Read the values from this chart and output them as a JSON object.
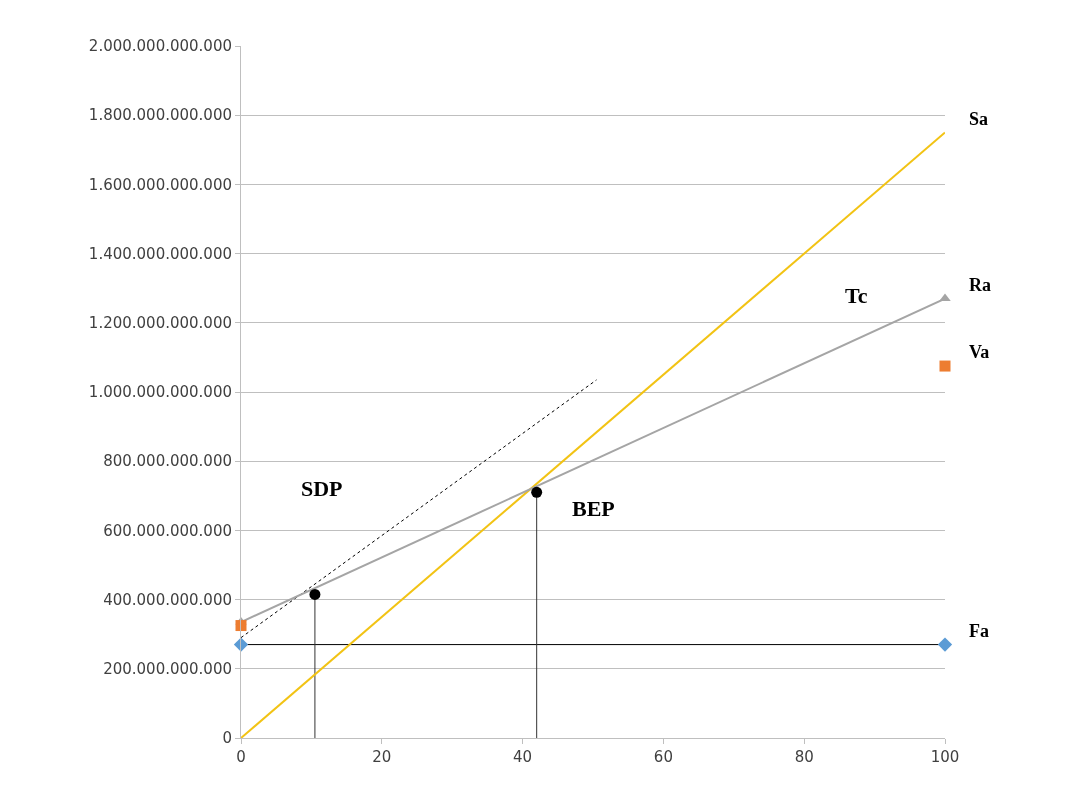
{
  "chart_data": {
    "type": "line",
    "xlim": [
      0,
      100
    ],
    "xticks": [
      0,
      20,
      40,
      60,
      80,
      100
    ],
    "ylim": [
      0,
      2000000000000
    ],
    "yticks": [
      0,
      {
        "value": 200000000000,
        "label": "200.000.000.000"
      },
      {
        "value": 400000000000,
        "label": "400.000.000.000"
      },
      {
        "value": 600000000000,
        "label": "600.000.000.000"
      },
      {
        "value": 800000000000,
        "label": "800.000.000.000"
      },
      {
        "value": 1000000000000,
        "label": "1.000.000.000.000"
      },
      {
        "value": 1200000000000,
        "label": "1.200.000.000.000"
      },
      {
        "value": 1400000000000,
        "label": "1.400.000.000.000"
      },
      {
        "value": 1600000000000,
        "label": "1.600.000.000.000"
      },
      {
        "value": 1800000000000,
        "label": "1.800.000.000.000"
      },
      {
        "value": 2000000000000,
        "label": "2.000.000.000.000"
      }
    ],
    "grid": "y",
    "legend": false,
    "series": [
      {
        "color": "#000000",
        "x": [
          0,
          100
        ],
        "values": [
          270000000000,
          270000000000
        ],
        "marker": "none"
      },
      {
        "color": "#000000",
        "x": [
          0,
          50.5
        ],
        "values": [
          290000000000,
          1035000000000
        ],
        "marker": "none",
        "line_style": "dotted"
      },
      {
        "color": "#333333",
        "x": [
          10.5,
          10.5
        ],
        "values": [
          0,
          415000000000
        ],
        "marker": "none"
      },
      {
        "color": "#333333",
        "x": [
          42,
          42
        ],
        "values": [
          0,
          710000000000
        ],
        "marker": "none"
      },
      {
        "name": "Sa",
        "color": "#f2c314",
        "x": [
          0,
          100
        ],
        "values": [
          0,
          1750000000000
        ],
        "marker": "none"
      },
      {
        "name": "Ra",
        "color": "#a5a5a5",
        "x": [
          0,
          100
        ],
        "values": [
          335000000000,
          1270000000000
        ],
        "marker": "triangle"
      },
      {
        "name": "Va",
        "type": "scatter",
        "color": "#ed7d31",
        "x": [
          0,
          100
        ],
        "values": [
          325000000000,
          1075000000000
        ],
        "marker": "square"
      },
      {
        "name": "Fa",
        "type": "scatter",
        "color": "#5b9bd5",
        "x": [
          0,
          100
        ],
        "values": [
          270000000000,
          270000000000
        ],
        "marker": "diamond"
      },
      {
        "type": "scatter",
        "color": "#000000",
        "x": [
          10.5,
          42
        ],
        "values": [
          415000000000,
          710000000000
        ],
        "marker": "circle"
      }
    ],
    "annotations": [
      "Tc",
      "SDP",
      "BEP"
    ]
  }
}
